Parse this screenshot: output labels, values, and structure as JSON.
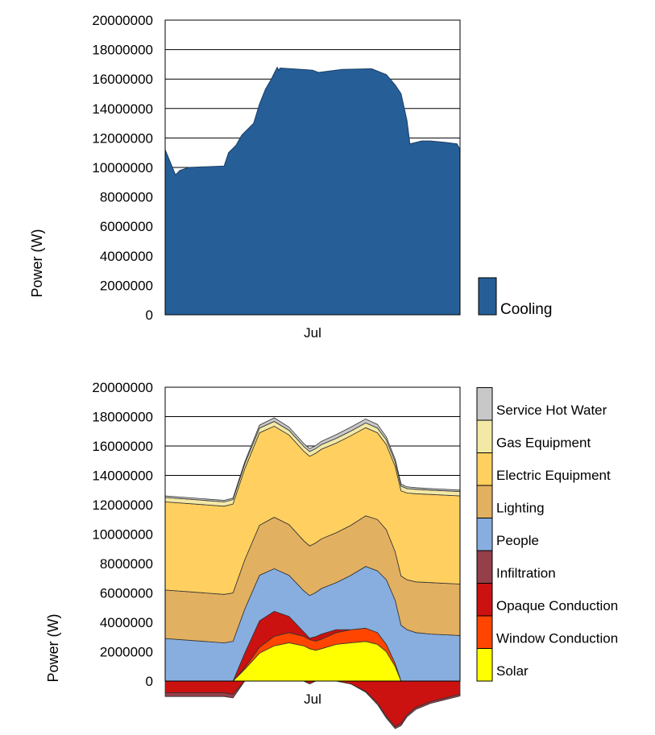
{
  "chart_data": [
    {
      "type": "area",
      "ylabel": "Power (W)",
      "xlabel": "",
      "x_tick_labels": [
        "Jul"
      ],
      "ylim": [
        0,
        20000000
      ],
      "yticks": [
        "0",
        "2000000",
        "4000000",
        "6000000",
        "8000000",
        "10000000",
        "12000000",
        "14000000",
        "16000000",
        "18000000",
        "20000000"
      ],
      "grid": true,
      "legend_position": "bottom-right",
      "series": [
        {
          "name": "Cooling",
          "color": "#265e98",
          "x": [
            0,
            0.035,
            0.05,
            0.08,
            0.2,
            0.215,
            0.24,
            0.26,
            0.285,
            0.3,
            0.32,
            0.34,
            0.36,
            0.37,
            0.38,
            0.385,
            0.39,
            0.5,
            0.52,
            0.6,
            0.7,
            0.75,
            0.78,
            0.8,
            0.82,
            0.83,
            0.87,
            0.9,
            0.95,
            0.99,
            1.0
          ],
          "values": [
            11200000,
            9500000,
            9800000,
            10000000,
            10100000,
            11000000,
            11500000,
            12200000,
            12700000,
            13000000,
            14300000,
            15300000,
            16000000,
            16400000,
            16800000,
            16600000,
            16750000,
            16600000,
            16450000,
            16650000,
            16700000,
            16300000,
            15600000,
            15000000,
            13200000,
            11600000,
            11800000,
            11800000,
            11700000,
            11600000,
            11200000
          ]
        }
      ]
    },
    {
      "type": "area",
      "stacked": true,
      "ylabel": "Power (W)",
      "xlabel": "",
      "x_tick_labels": [
        "Jul"
      ],
      "ylim": [
        -1500000,
        20000000
      ],
      "yticks": [
        "0",
        "2000000",
        "4000000",
        "6000000",
        "8000000",
        "10000000",
        "12000000",
        "14000000",
        "16000000",
        "18000000",
        "20000000"
      ],
      "grid": true,
      "legend_position": "right",
      "series": [
        {
          "name": "Solar",
          "color": "#ffff00",
          "x": [
            0,
            0.2,
            0.23,
            0.27,
            0.32,
            0.37,
            0.42,
            0.47,
            0.49,
            0.51,
            0.53,
            0.58,
            0.63,
            0.68,
            0.72,
            0.75,
            0.78,
            0.8,
            0.82,
            0.85,
            0.9,
            1.0
          ],
          "pos": [
            0,
            0,
            0,
            800000,
            1900000,
            2400000,
            2600000,
            2400000,
            2200000,
            2100000,
            2200000,
            2500000,
            2600000,
            2700000,
            2500000,
            2000000,
            1000000,
            0,
            0,
            0,
            0,
            0
          ],
          "neg": [
            0,
            0,
            0,
            0,
            0,
            0,
            0,
            0,
            0,
            0,
            0,
            0,
            0,
            0,
            0,
            0,
            0,
            0,
            0,
            0,
            0,
            0
          ]
        },
        {
          "name": "Window Conduction",
          "color": "#ff4500",
          "x": [
            0,
            0.2,
            0.23,
            0.27,
            0.32,
            0.37,
            0.42,
            0.47,
            0.49,
            0.51,
            0.53,
            0.58,
            0.63,
            0.68,
            0.72,
            0.75,
            0.78,
            0.8,
            0.82,
            0.85,
            0.9,
            1.0
          ],
          "pos": [
            0,
            0,
            0,
            100000,
            400000,
            650000,
            700000,
            650000,
            620000,
            620000,
            650000,
            800000,
            900000,
            900000,
            800000,
            500000,
            200000,
            0,
            0,
            0,
            0,
            0
          ],
          "neg": [
            0,
            0,
            0,
            0,
            0,
            0,
            0,
            0,
            0,
            0,
            0,
            0,
            0,
            0,
            0,
            0,
            0,
            0,
            0,
            0,
            0,
            0
          ]
        },
        {
          "name": "Opaque Conduction",
          "color": "#cc1111",
          "x": [
            0,
            0.2,
            0.23,
            0.27,
            0.32,
            0.37,
            0.42,
            0.47,
            0.49,
            0.51,
            0.53,
            0.58,
            0.63,
            0.68,
            0.72,
            0.75,
            0.78,
            0.8,
            0.82,
            0.85,
            0.9,
            1.0
          ],
          "pos": [
            0,
            0,
            0,
            1000000,
            1800000,
            1700000,
            1100000,
            300000,
            100000,
            300000,
            350000,
            200000,
            0,
            0,
            0,
            0,
            0,
            0,
            0,
            0,
            0,
            0
          ],
          "neg": [
            -800000,
            -800000,
            -900000,
            0,
            0,
            0,
            0,
            0,
            -200000,
            0,
            0,
            0,
            -200000,
            -700000,
            -1500000,
            -2400000,
            -3100000,
            -2900000,
            -2300000,
            -1800000,
            -1400000,
            -900000
          ]
        },
        {
          "name": "Infiltration",
          "color": "#943f49",
          "x": [
            0,
            0.2,
            0.23,
            0.27,
            0.32,
            0.37,
            0.42,
            0.47,
            0.49,
            0.51,
            0.53,
            0.58,
            0.63,
            0.68,
            0.72,
            0.75,
            0.78,
            0.8,
            0.82,
            0.85,
            0.9,
            1.0
          ],
          "pos": [
            0,
            0,
            0,
            0,
            0,
            0,
            0,
            0,
            0,
            0,
            0,
            0,
            0,
            0,
            0,
            0,
            0,
            0,
            0,
            0,
            0,
            0
          ],
          "neg": [
            -250000,
            -250000,
            -250000,
            0,
            0,
            0,
            0,
            0,
            0,
            0,
            0,
            0,
            0,
            -60000,
            -100000,
            -120000,
            -140000,
            -140000,
            -140000,
            -130000,
            -120000,
            -120000
          ]
        },
        {
          "name": "People",
          "color": "#87aedf",
          "x": [
            0,
            0.2,
            0.23,
            0.27,
            0.32,
            0.37,
            0.42,
            0.47,
            0.49,
            0.51,
            0.53,
            0.58,
            0.63,
            0.68,
            0.72,
            0.75,
            0.78,
            0.8,
            0.82,
            0.85,
            0.9,
            1.0
          ],
          "pos": [
            2900000,
            2600000,
            2700000,
            3000000,
            3100000,
            2900000,
            2800000,
            2800000,
            2900000,
            3000000,
            3100000,
            3200000,
            3700000,
            4200000,
            4200000,
            4400000,
            4300000,
            3800000,
            3500000,
            3300000,
            3200000,
            3100000
          ],
          "neg": [
            0,
            0,
            0,
            0,
            0,
            0,
            0,
            0,
            0,
            0,
            0,
            0,
            0,
            0,
            0,
            0,
            0,
            0,
            0,
            0,
            0,
            0
          ]
        },
        {
          "name": "Lighting",
          "color": "#e2b061",
          "x": [
            0,
            0.2,
            0.23,
            0.27,
            0.32,
            0.37,
            0.42,
            0.47,
            0.49,
            0.51,
            0.53,
            0.58,
            0.63,
            0.68,
            0.72,
            0.75,
            0.78,
            0.8,
            0.82,
            0.85,
            0.9,
            1.0
          ],
          "pos": [
            3300000,
            3300000,
            3300000,
            3350000,
            3400000,
            3500000,
            3450000,
            3400000,
            3380000,
            3380000,
            3380000,
            3400000,
            3400000,
            3450000,
            3500000,
            3400000,
            3300000,
            3350000,
            3400000,
            3450000,
            3500000,
            3500000
          ],
          "neg": [
            0,
            0,
            0,
            0,
            0,
            0,
            0,
            0,
            0,
            0,
            0,
            0,
            0,
            0,
            0,
            0,
            0,
            0,
            0,
            0,
            0,
            0
          ]
        },
        {
          "name": "Electric Equipment",
          "color": "#ffd060",
          "x": [
            0,
            0.2,
            0.23,
            0.27,
            0.32,
            0.37,
            0.42,
            0.47,
            0.49,
            0.51,
            0.53,
            0.58,
            0.63,
            0.68,
            0.72,
            0.75,
            0.78,
            0.8,
            0.82,
            0.85,
            0.9,
            1.0
          ],
          "pos": [
            6000000,
            6000000,
            6050000,
            6200000,
            6300000,
            6200000,
            6100000,
            6100000,
            6100000,
            6100000,
            6100000,
            6100000,
            6100000,
            6000000,
            5900000,
            5800000,
            5800000,
            5800000,
            5900000,
            6000000,
            6000000,
            6000000
          ],
          "neg": [
            0,
            0,
            0,
            0,
            0,
            0,
            0,
            0,
            0,
            0,
            0,
            0,
            0,
            0,
            0,
            0,
            0,
            0,
            0,
            0,
            0,
            0
          ]
        },
        {
          "name": "Gas Equipment",
          "color": "#f3e9a6",
          "x": [
            0,
            0.2,
            0.23,
            0.27,
            0.32,
            0.37,
            0.42,
            0.47,
            0.49,
            0.51,
            0.53,
            0.58,
            0.63,
            0.68,
            0.72,
            0.75,
            0.78,
            0.8,
            0.82,
            0.85,
            0.9,
            1.0
          ],
          "pos": [
            300000,
            300000,
            300000,
            320000,
            320000,
            320000,
            320000,
            320000,
            320000,
            320000,
            320000,
            320000,
            320000,
            320000,
            320000,
            320000,
            320000,
            320000,
            300000,
            300000,
            300000,
            300000
          ],
          "neg": [
            0,
            0,
            0,
            0,
            0,
            0,
            0,
            0,
            0,
            0,
            0,
            0,
            0,
            0,
            0,
            0,
            0,
            0,
            0,
            0,
            0,
            0
          ]
        },
        {
          "name": "Service Hot Water",
          "color": "#c8c8c8",
          "x": [
            0,
            0.2,
            0.23,
            0.27,
            0.32,
            0.37,
            0.42,
            0.47,
            0.49,
            0.51,
            0.53,
            0.58,
            0.63,
            0.68,
            0.72,
            0.75,
            0.78,
            0.8,
            0.82,
            0.85,
            0.9,
            1.0
          ],
          "pos": [
            100000,
            100000,
            100000,
            150000,
            200000,
            250000,
            220000,
            200000,
            200000,
            200000,
            220000,
            250000,
            270000,
            270000,
            250000,
            200000,
            180000,
            150000,
            120000,
            110000,
            100000,
            100000
          ],
          "neg": [
            0,
            0,
            0,
            0,
            0,
            0,
            0,
            0,
            0,
            0,
            0,
            0,
            0,
            0,
            0,
            0,
            0,
            0,
            0,
            0,
            0,
            0
          ]
        }
      ]
    }
  ]
}
